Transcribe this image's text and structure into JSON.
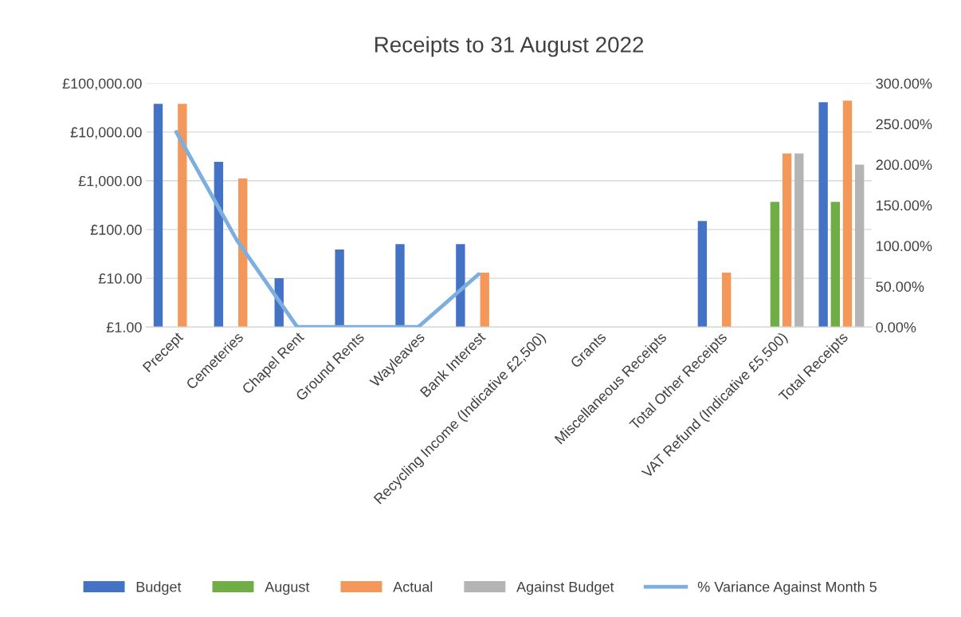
{
  "chart_data": {
    "type": "bar",
    "title": "Receipts to 31 August 2022",
    "categories": [
      "Precept",
      "Cemeteries",
      "Chapel Rent",
      "Ground Rents",
      "Wayleaves",
      "Bank Interest",
      "Recycling Income (Indicative £2,500)",
      "Grants",
      "Miscellaneous Receipts",
      "Total Other Receipts",
      "VAT Refund (Indicative £5,500)",
      "Total Receipts"
    ],
    "series": [
      {
        "name": "Budget",
        "color": "#4472c4",
        "values": [
          38000,
          2450,
          10,
          39,
          50,
          50,
          null,
          null,
          null,
          150,
          null,
          41000
        ]
      },
      {
        "name": "August",
        "color": "#70ad47",
        "values": [
          null,
          null,
          null,
          null,
          null,
          null,
          null,
          null,
          null,
          null,
          370,
          370
        ]
      },
      {
        "name": "Actual",
        "color": "#f4975a",
        "values": [
          38000,
          1120,
          null,
          null,
          null,
          13,
          null,
          null,
          null,
          13,
          3650,
          44000
        ]
      },
      {
        "name": "Against Budget",
        "color": "#b4b4b4",
        "values": [
          null,
          null,
          null,
          null,
          null,
          null,
          null,
          null,
          null,
          null,
          3650,
          2150
        ]
      },
      {
        "name": "% Variance Against Month 5",
        "type": "line",
        "axis": "y2",
        "color": "#7cafde",
        "values": [
          240,
          107,
          0,
          0,
          0,
          65,
          null,
          null,
          null,
          null,
          null,
          null
        ]
      }
    ],
    "log": "y",
    "ylim": [
      1,
      100000
    ],
    "yticks": [
      {
        "value": 1,
        "label": "£1.00"
      },
      {
        "value": 10,
        "label": "£10.00"
      },
      {
        "value": 100,
        "label": "£100.00"
      },
      {
        "value": 1000,
        "label": "£1,000.00"
      },
      {
        "value": 10000,
        "label": "£10,000.00"
      },
      {
        "value": 100000,
        "label": "£100,000.00"
      }
    ],
    "y2lim": [
      0,
      300
    ],
    "y2ticks": [
      {
        "value": 0,
        "label": "0.00%"
      },
      {
        "value": 50,
        "label": "50.00%"
      },
      {
        "value": 100,
        "label": "100.00%"
      },
      {
        "value": 150,
        "label": "150.00%"
      },
      {
        "value": 200,
        "label": "200.00%"
      },
      {
        "value": 250,
        "label": "250.00%"
      },
      {
        "value": 300,
        "label": "300.00%"
      }
    ],
    "grid": "y",
    "legend": "bottom"
  }
}
